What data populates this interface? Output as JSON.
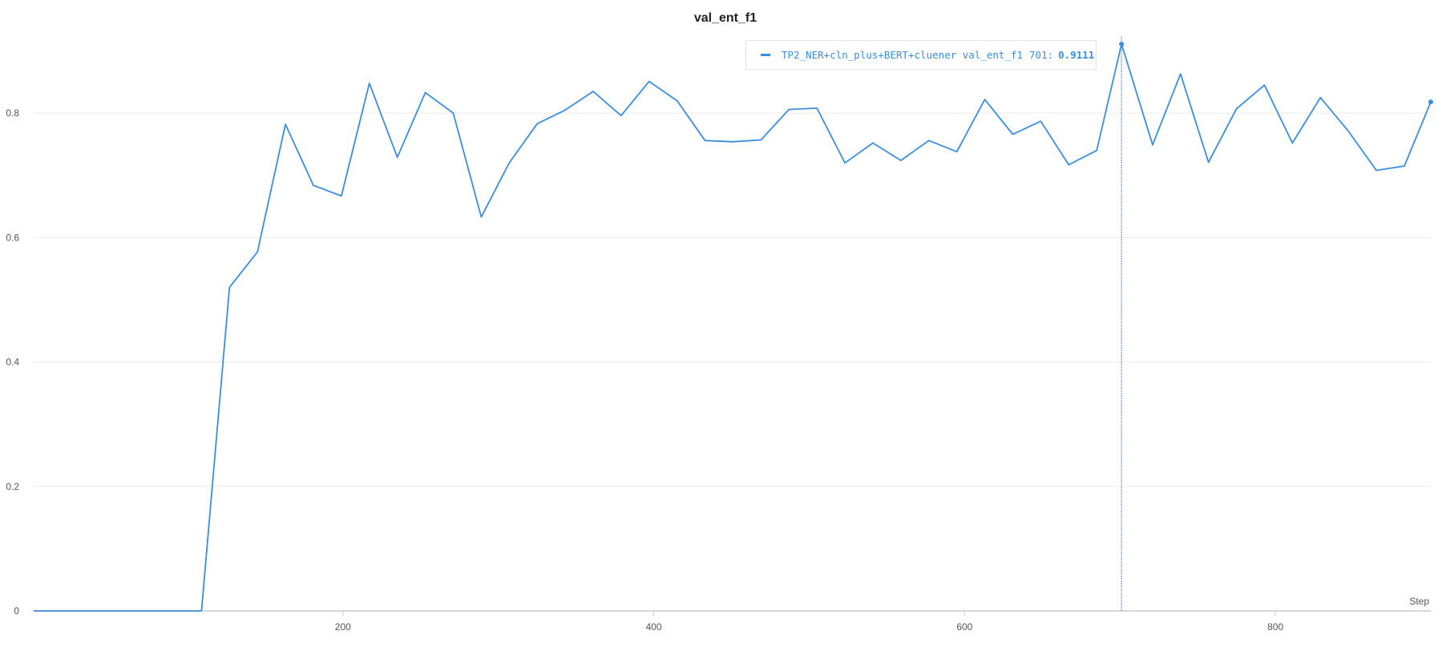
{
  "colors": {
    "series": "#3b8ede",
    "grid": "#ebebeb",
    "axis": "#cccccc"
  },
  "tooltip": {
    "run_name": "TP2_NER+cln_plus+BERT+cluener val_ent_f1",
    "step": "701:",
    "value": "0.9111"
  },
  "chart_data": {
    "type": "line",
    "title": "val_ent_f1",
    "xlabel": "Step",
    "ylabel": "",
    "xlim": [
      1,
      900
    ],
    "ylim": [
      0,
      0.92
    ],
    "grid": true,
    "x_ticks": [
      "200",
      "400",
      "600",
      "800"
    ],
    "x_tick_values": [
      200,
      400,
      600,
      800
    ],
    "y_ticks": [
      "0",
      "0.2",
      "0.4",
      "0.6",
      "0.8"
    ],
    "y_tick_values": [
      0,
      0.2,
      0.4,
      0.6,
      0.8
    ],
    "hover_step": 701,
    "series": [
      {
        "x": [
          1,
          19,
          37,
          55,
          73,
          91,
          109,
          127,
          145,
          163,
          181,
          199,
          217,
          235,
          253,
          271,
          289,
          307,
          325,
          343,
          361,
          379,
          397,
          415,
          433,
          451,
          469,
          487,
          505,
          523,
          541,
          559,
          577,
          595,
          613,
          631,
          649,
          667,
          685,
          701,
          721,
          739,
          757,
          775,
          793,
          811,
          829,
          847,
          865,
          883,
          900
        ],
        "values": [
          0,
          0,
          0,
          0,
          0,
          0,
          0,
          0.52,
          0.577,
          0.782,
          0.684,
          0.667,
          0.848,
          0.729,
          0.833,
          0.8,
          0.633,
          0.72,
          0.783,
          0.805,
          0.835,
          0.796,
          0.851,
          0.82,
          0.756,
          0.754,
          0.757,
          0.806,
          0.808,
          0.72,
          0.752,
          0.724,
          0.756,
          0.738,
          0.822,
          0.766,
          0.787,
          0.717,
          0.74,
          0.9111,
          0.749,
          0.863,
          0.721,
          0.807,
          0.845,
          0.752,
          0.825,
          0.771,
          0.708,
          0.715,
          0.818
        ]
      }
    ]
  }
}
